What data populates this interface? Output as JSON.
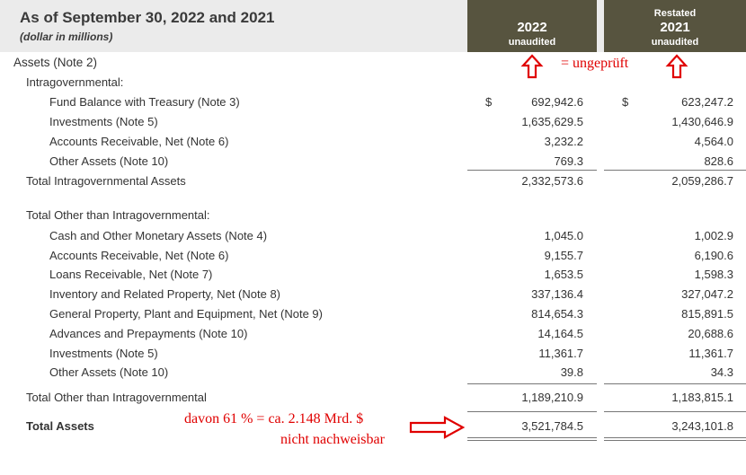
{
  "header": {
    "title": "As of September 30, 2022 and 2021",
    "subtitle": "(dollar in millions)",
    "col_2022": {
      "year": "2022",
      "note": "unaudited"
    },
    "col_2021": {
      "restated": "Restated",
      "year": "2021",
      "note": "unaudited"
    }
  },
  "section_title": "Assets (Note 2)",
  "currency": "$",
  "intra": {
    "heading": "Intragovernmental:",
    "rows": [
      {
        "label": "Fund Balance with Treasury (Note 3)",
        "v2022": "692,942.6",
        "v2021": "623,247.2"
      },
      {
        "label": "Investments (Note 5)",
        "v2022": "1,635,629.5",
        "v2021": "1,430,646.9"
      },
      {
        "label": "Accounts Receivable, Net (Note 6)",
        "v2022": "3,232.2",
        "v2021": "4,564.0"
      },
      {
        "label": "Other Assets (Note 10)",
        "v2022": "769.3",
        "v2021": "828.6"
      }
    ],
    "total": {
      "label": "Total Intragovernmental Assets",
      "v2022": "2,332,573.6",
      "v2021": "2,059,286.7"
    }
  },
  "other": {
    "heading": "Total Other than Intragovernmental:",
    "rows": [
      {
        "label": "Cash and Other Monetary Assets (Note 4)",
        "v2022": "1,045.0",
        "v2021": "1,002.9"
      },
      {
        "label": "Accounts Receivable, Net (Note 6)",
        "v2022": "9,155.7",
        "v2021": "6,190.6"
      },
      {
        "label": "Loans Receivable, Net (Note 7)",
        "v2022": "1,653.5",
        "v2021": "1,598.3"
      },
      {
        "label": "Inventory and Related Property, Net (Note 8)",
        "v2022": "337,136.4",
        "v2021": "327,047.2"
      },
      {
        "label": "General Property, Plant and Equipment, Net (Note 9)",
        "v2022": "814,654.3",
        "v2021": "815,891.5"
      },
      {
        "label": "Advances and Prepayments (Note 10)",
        "v2022": "14,164.5",
        "v2021": "20,688.6"
      },
      {
        "label": "Investments (Note 5)",
        "v2022": "11,361.7",
        "v2021": "11,361.7"
      },
      {
        "label": "Other Assets (Note 10)",
        "v2022": "39.8",
        "v2021": "34.3"
      }
    ],
    "total": {
      "label": "Total Other than Intragovernmental",
      "v2022": "1,189,210.9",
      "v2021": "1,183,815.1"
    }
  },
  "total_assets": {
    "label": "Total Assets",
    "v2022": "3,521,784.5",
    "v2021": "3,243,101.8"
  },
  "annotations": {
    "unaudited": "= ungeprüft",
    "note_line1": "davon 61 % = ca. 2.148 Mrd. $",
    "note_line2": "nicht nachweisbar",
    "color": "#e00000"
  }
}
